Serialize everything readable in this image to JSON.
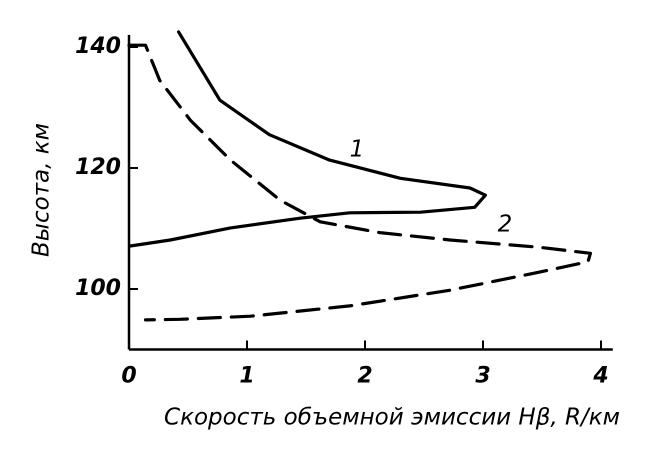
{
  "chart_data": {
    "type": "line",
    "xlabel": "Скорость объемной эмиссии Hβ, R/км",
    "ylabel": "Высота, км",
    "xlim": [
      0,
      4.1
    ],
    "ylim": [
      90,
      142
    ],
    "xticks": [
      0,
      1,
      2,
      3,
      4
    ],
    "yticks": [
      100,
      120,
      140
    ],
    "series": [
      {
        "name": "1",
        "color": "#000000",
        "linestyle": "solid",
        "x": [
          0.42,
          0.77,
          1.19,
          1.7,
          2.3,
          2.89,
          3.02,
          2.93,
          2.47,
          1.87,
          1.45,
          0.86,
          0.35,
          0.01
        ],
        "values": [
          142.5,
          131.2,
          125.5,
          121.3,
          118.3,
          116.7,
          115.5,
          113.5,
          112.7,
          112.6,
          111.7,
          110.1,
          108.1,
          107.1
        ]
      },
      {
        "name": "2",
        "color": "#000000",
        "linestyle": "dashed",
        "x": [
          0,
          0.14,
          0.26,
          0.52,
          0.86,
          1.28,
          1.62,
          2.13,
          2.72,
          3.48,
          3.91,
          3.89,
          3.48,
          2.72,
          1.87,
          1.03,
          0.43,
          0.14
        ],
        "values": [
          140.3,
          140.3,
          134.5,
          127.9,
          121.3,
          114.7,
          111.1,
          109.3,
          108.1,
          106.9,
          105.9,
          104.5,
          102.8,
          99.8,
          97.2,
          95.5,
          95.0,
          94.9
        ]
      }
    ]
  }
}
